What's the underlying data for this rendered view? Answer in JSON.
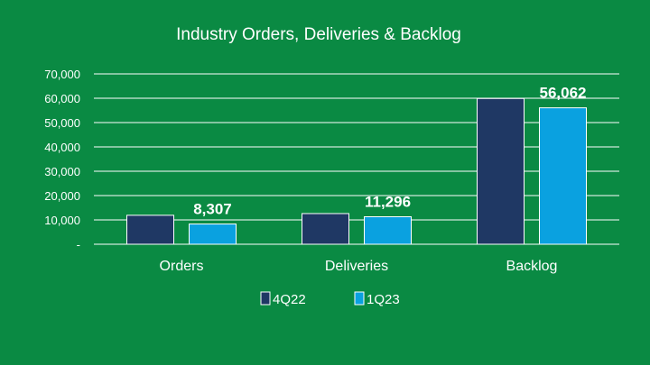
{
  "chart_data": {
    "type": "bar",
    "title": "Industry Orders, Deliveries & Backlog",
    "categories": [
      "Orders",
      "Deliveries",
      "Backlog"
    ],
    "series": [
      {
        "name": "4Q22",
        "color": "#1f3864",
        "values": [
          11900,
          12600,
          59900
        ],
        "labels": [
          null,
          null,
          null
        ]
      },
      {
        "name": "1Q23",
        "color": "#0aa1e0",
        "values": [
          8307,
          11296,
          56062
        ],
        "labels": [
          "8,307",
          "11,296",
          "56,062"
        ]
      }
    ],
    "ylim": [
      0,
      70000
    ],
    "yticks": [
      0,
      10000,
      20000,
      30000,
      40000,
      50000,
      60000,
      70000
    ],
    "ytick_labels": [
      "-",
      "10,000",
      "20,000",
      "30,000",
      "40,000",
      "50,000",
      "60,000",
      "70,000"
    ],
    "grid": true,
    "legend_position": "bottom",
    "background": "#0a8a43",
    "gridline_color": "#ffffff"
  }
}
